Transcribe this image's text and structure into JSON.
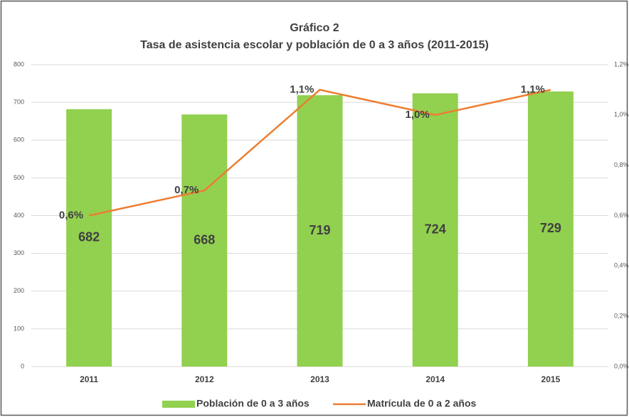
{
  "chart_data": {
    "type": "bar",
    "title": "Gráfico 2",
    "subtitle": "Tasa de asistencia escolar y población de 0 a 3 años (2011-2015)",
    "categories": [
      "2011",
      "2012",
      "2013",
      "2014",
      "2015"
    ],
    "series": [
      {
        "name": "Población de 0 a 3 años",
        "type": "bar",
        "color": "#92d050",
        "values": [
          682,
          668,
          719,
          724,
          729
        ]
      },
      {
        "name": "Matrícula de 0 a 2 años",
        "type": "line",
        "axis": "y2",
        "color": "#ed7d31",
        "values": [
          0.6,
          0.7,
          1.1,
          1.0,
          1.1
        ],
        "value_labels": [
          "0,6%",
          "0,7%",
          "1,1%",
          "1,0%",
          "1,1%"
        ]
      }
    ],
    "ylim": [
      0,
      800
    ],
    "yticks": [
      0,
      100,
      200,
      300,
      400,
      500,
      600,
      700,
      800
    ],
    "y2lim": [
      0,
      1.2
    ],
    "y2ticks": [
      {
        "value": 0,
        "label": "0,0%"
      },
      {
        "value": 0.2,
        "label": "0,2%"
      },
      {
        "value": 0.4,
        "label": "0,4%"
      },
      {
        "value": 0.6,
        "label": "0,6%"
      },
      {
        "value": 0.8,
        "label": "0,8%"
      },
      {
        "value": 1.0,
        "label": "1,0%"
      },
      {
        "value": 1.2,
        "label": "1,2%"
      }
    ],
    "grid": true,
    "legend": "bottom"
  }
}
